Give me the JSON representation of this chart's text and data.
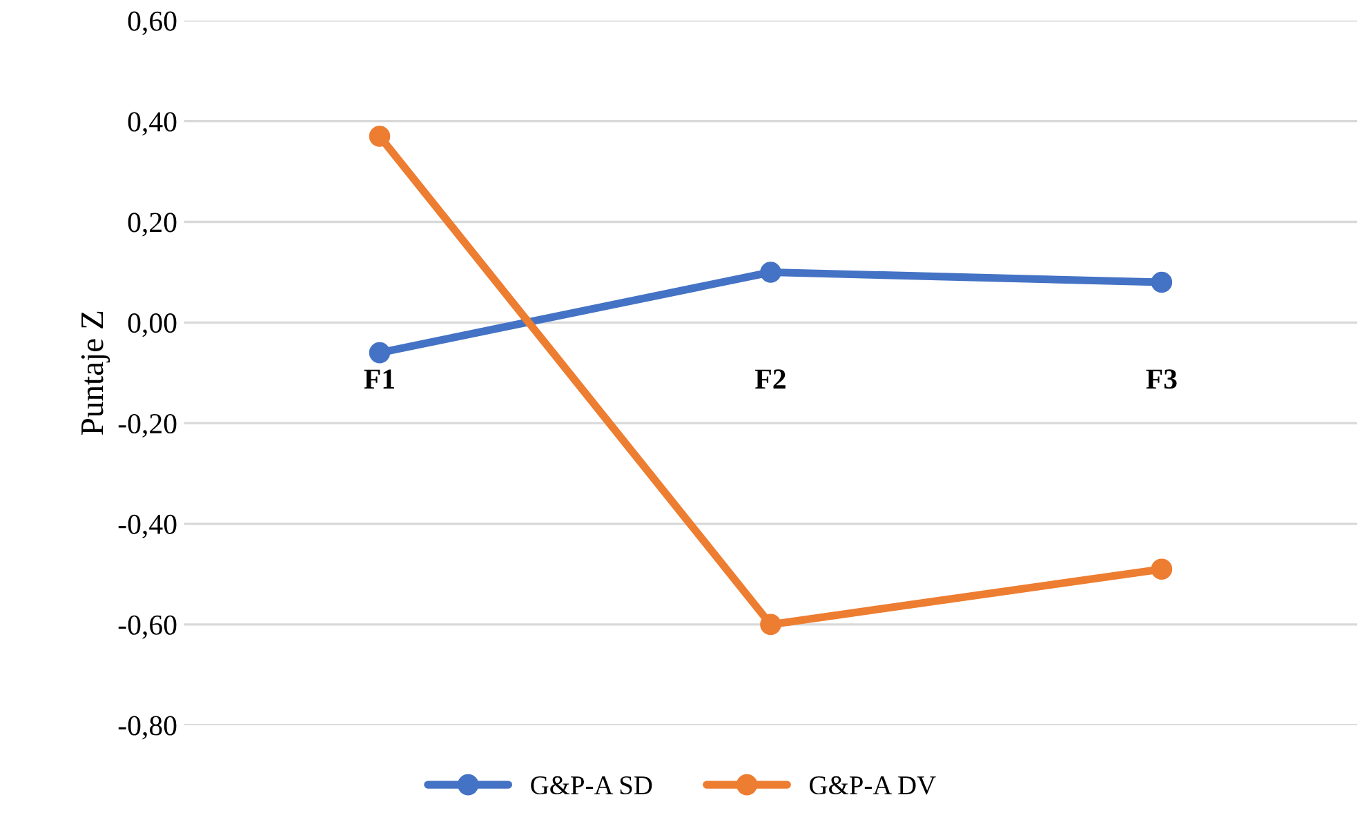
{
  "chart_data": {
    "type": "line",
    "ylabel": "Puntaje Z",
    "categories": [
      "F1",
      "F2",
      "F3"
    ],
    "series": [
      {
        "name": "G&P-A SD",
        "color": "#4472c4",
        "values": [
          -0.06,
          0.1,
          0.08
        ]
      },
      {
        "name": "G&P-A DV",
        "color": "#ed7d31",
        "values": [
          0.37,
          -0.6,
          -0.49
        ]
      }
    ],
    "ylim": [
      -0.8,
      0.6
    ],
    "yticks": [
      {
        "value": -0.8,
        "label": "-0,80"
      },
      {
        "value": -0.6,
        "label": "-0,60"
      },
      {
        "value": -0.4,
        "label": "-0,40"
      },
      {
        "value": -0.2,
        "label": "-0,20"
      },
      {
        "value": 0,
        "label": "0,00"
      },
      {
        "value": 0.2,
        "label": "0,20"
      },
      {
        "value": 0.4,
        "label": "0,40"
      },
      {
        "value": 0.6,
        "label": "0,60"
      }
    ],
    "grid": "y",
    "legend": "bottom",
    "marker": "circle",
    "line_style": "solid"
  }
}
